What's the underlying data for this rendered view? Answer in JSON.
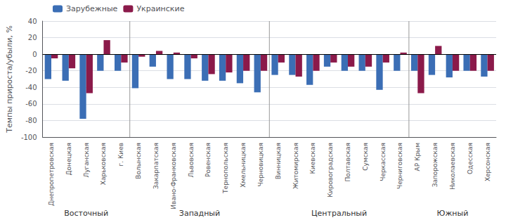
{
  "chart_data": {
    "type": "bar",
    "categories": [
      "Днепропетровская",
      "Донецкая",
      "Луганская",
      "Харьковская",
      "г. Киев",
      "Волынская",
      "Закарпатская",
      "Ивано-Франковская",
      "Львовская",
      "Ровенская",
      "Тернопольская",
      "Хмельницкая",
      "Черновицкая",
      "Винницкая",
      "Житомирская",
      "Киевская",
      "Кировоградская",
      "Полтавская",
      "Сумская",
      "Черкасская",
      "Черниговская",
      "АР Крым",
      "Запорожская",
      "Николаевская",
      "Одесская",
      "Херсонская"
    ],
    "series": [
      {
        "name": "Зарубежные",
        "color": "#3B6EB5",
        "values": [
          -30,
          -32,
          -78,
          -20,
          -20,
          -41,
          -15,
          -30,
          -30,
          -32,
          -32,
          -35,
          -46,
          -25,
          -25,
          -37,
          -15,
          -20,
          -20,
          -43,
          -20,
          -20,
          -25,
          -28,
          -20,
          -27
        ]
      },
      {
        "name": "Украинские",
        "color": "#8B1A4A",
        "values": [
          -5,
          -17,
          -47,
          17,
          -10,
          -3,
          4,
          2,
          -5,
          -24,
          -22,
          -20,
          -20,
          -10,
          -27,
          -20,
          -10,
          -15,
          -15,
          -10,
          2,
          -47,
          10,
          -20,
          -20,
          -20
        ]
      }
    ],
    "annotations": [
      {
        "text": "Восточный",
        "from": "Днепропетровская",
        "to": "г. Киев"
      },
      {
        "text": "Западный",
        "from": "Волынская",
        "to": "Черновицкая"
      },
      {
        "text": "Центральный",
        "from": "Винницкая",
        "to": "Черниговская"
      },
      {
        "text": "Южный",
        "from": "АР Крым",
        "to": "Херсонская"
      }
    ],
    "ylabel": "Темпы прироста/убыли, %",
    "ylim": [
      -100,
      40
    ],
    "yticks": [
      -100,
      -80,
      -60,
      -40,
      -20,
      0,
      20,
      40
    ],
    "grid": true,
    "legend": "upper left"
  }
}
